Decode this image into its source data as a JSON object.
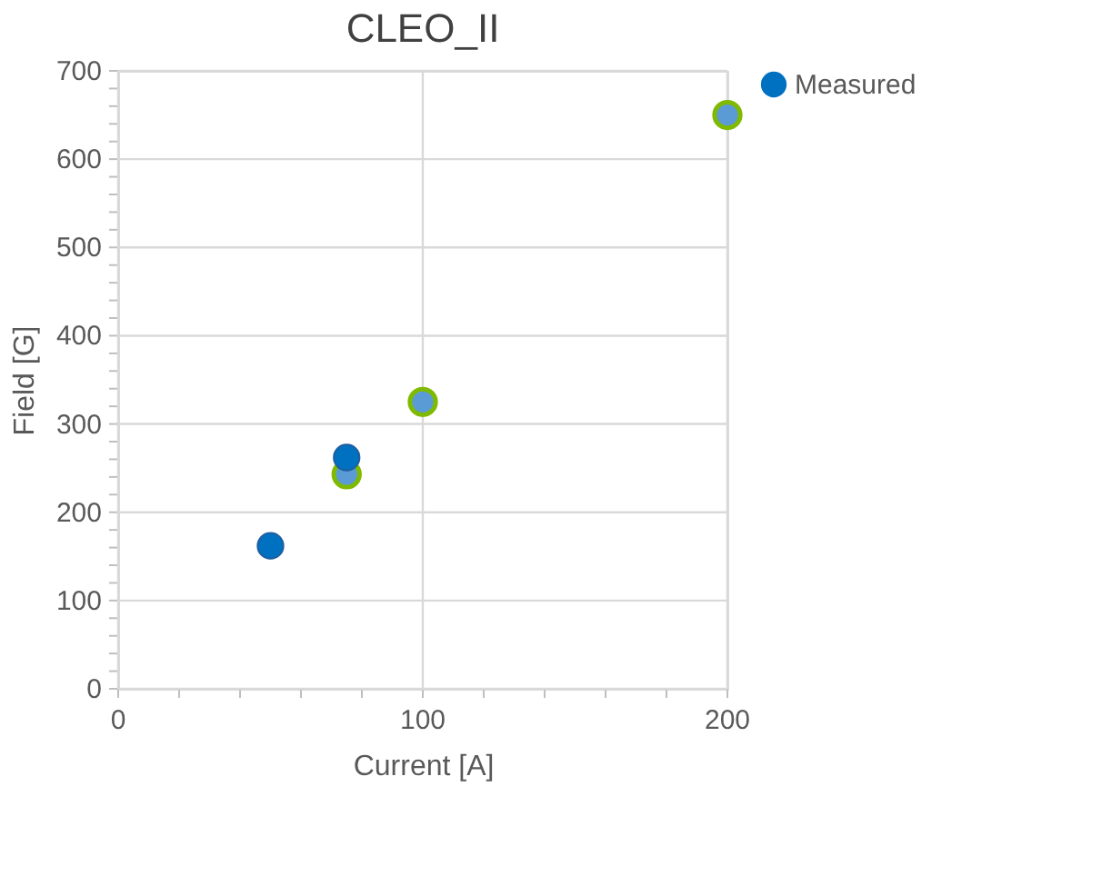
{
  "chart_data": {
    "type": "scatter",
    "title": "CLEO_II",
    "xlabel": "Current [A]",
    "ylabel": "Field [G]",
    "series": [
      {
        "color": "#5b9bd5",
        "x": [
          75,
          100,
          200
        ],
        "values": [
          243,
          325,
          650
        ]
      },
      {
        "name": "Measured",
        "color": "#0070c0",
        "x": [
          50,
          75
        ],
        "values": [
          162,
          262
        ]
      }
    ],
    "xlim": [
      0,
      200
    ],
    "ylim": [
      0,
      700
    ],
    "xticks": [
      0,
      {
        "value": 20,
        "label": null
      },
      {
        "value": 40,
        "label": null
      },
      {
        "value": 60,
        "label": null
      },
      {
        "value": 80,
        "label": null
      },
      100,
      {
        "value": 120,
        "label": null
      },
      {
        "value": 140,
        "label": null
      },
      {
        "value": 160,
        "label": null
      },
      {
        "value": 180,
        "label": null
      },
      200
    ],
    "yticks": [
      0,
      {
        "value": 20,
        "label": null
      },
      {
        "value": 40,
        "label": null
      },
      {
        "value": 60,
        "label": null
      },
      {
        "value": 80,
        "label": null
      },
      100,
      {
        "value": 120,
        "label": null
      },
      {
        "value": 140,
        "label": null
      },
      {
        "value": 160,
        "label": null
      },
      {
        "value": 180,
        "label": null
      },
      200,
      {
        "value": 220,
        "label": null
      },
      {
        "value": 240,
        "label": null
      },
      {
        "value": 260,
        "label": null
      },
      {
        "value": 280,
        "label": null
      },
      300,
      {
        "value": 320,
        "label": null
      },
      {
        "value": 340,
        "label": null
      },
      {
        "value": 360,
        "label": null
      },
      {
        "value": 380,
        "label": null
      },
      400,
      {
        "value": 420,
        "label": null
      },
      {
        "value": 440,
        "label": null
      },
      {
        "value": 460,
        "label": null
      },
      {
        "value": 480,
        "label": null
      },
      500,
      {
        "value": 520,
        "label": null
      },
      {
        "value": 540,
        "label": null
      },
      {
        "value": 560,
        "label": null
      },
      {
        "value": 580,
        "label": null
      },
      600,
      {
        "value": 620,
        "label": null
      },
      {
        "value": 640,
        "label": null
      },
      {
        "value": 660,
        "label": null
      },
      {
        "value": 680,
        "label": null
      },
      700
    ],
    "grid": true,
    "legend": "right",
    "marker": "circle"
  }
}
